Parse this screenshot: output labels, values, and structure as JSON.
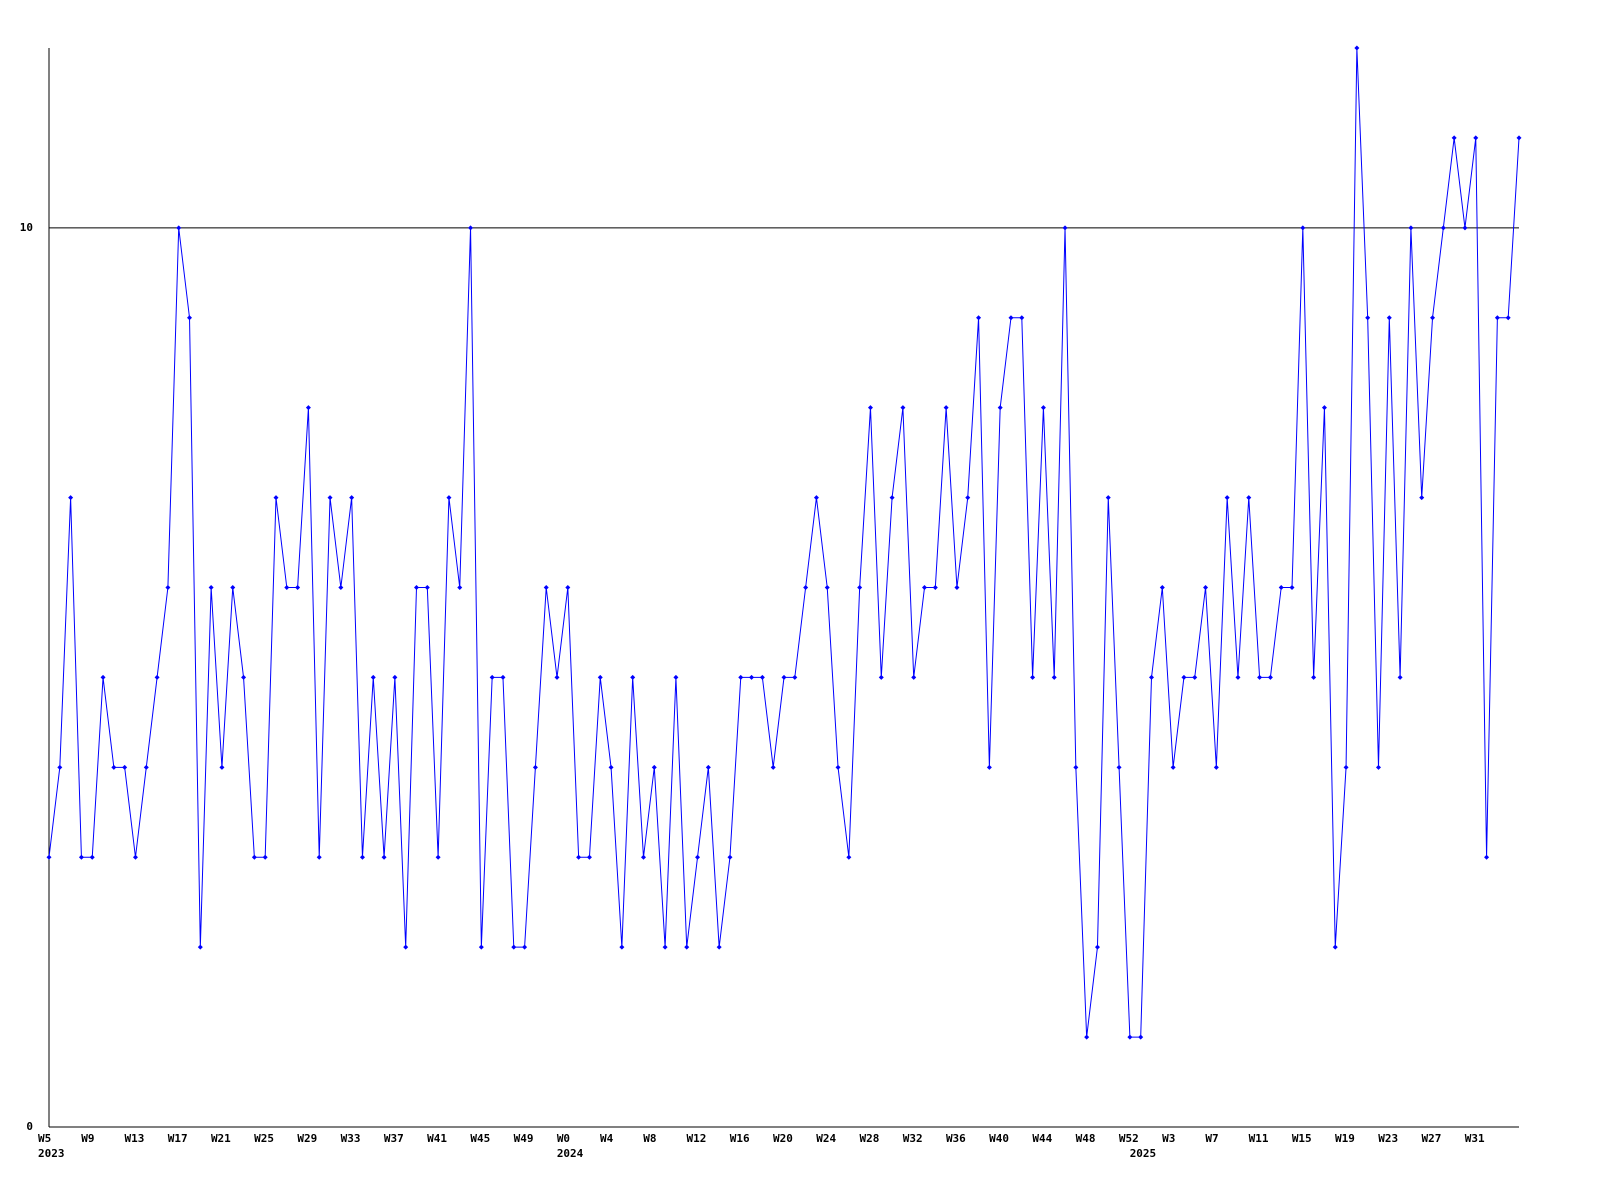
{
  "chart_data": {
    "type": "line",
    "categories": [
      "W5",
      null,
      null,
      null,
      "W9",
      null,
      null,
      null,
      "W13",
      null,
      null,
      null,
      "W17",
      null,
      null,
      null,
      "W21",
      null,
      null,
      null,
      "W25",
      null,
      null,
      null,
      "W29",
      null,
      null,
      null,
      "W33",
      null,
      null,
      null,
      "W37",
      null,
      null,
      null,
      "W41",
      null,
      null,
      null,
      "W45",
      null,
      null,
      null,
      "W49",
      null,
      null,
      null,
      "W0",
      null,
      null,
      null,
      "W4",
      null,
      null,
      null,
      "W8",
      null,
      null,
      null,
      "W12",
      null,
      null,
      null,
      "W16",
      null,
      null,
      null,
      "W20",
      null,
      null,
      null,
      "W24",
      null,
      null,
      null,
      "W28",
      null,
      null,
      null,
      "W32",
      null,
      null,
      null,
      "W36",
      null,
      null,
      null,
      "W40",
      null,
      null,
      null,
      "W44",
      null,
      null,
      null,
      "W48",
      null,
      null,
      null,
      "W52",
      null,
      null,
      null,
      "W3",
      null,
      null,
      null,
      "W7",
      null,
      null,
      null,
      "W11",
      null,
      null,
      null,
      "W15",
      null,
      null,
      null,
      "W19",
      null,
      null,
      null,
      "W23",
      null,
      null,
      null,
      "W27",
      null,
      null,
      null,
      "W31",
      null,
      null,
      null,
      null
    ],
    "years": [
      "2023",
      null,
      null,
      null,
      null,
      null,
      null,
      null,
      null,
      null,
      null,
      null,
      null,
      null,
      null,
      null,
      null,
      null,
      null,
      null,
      null,
      null,
      null,
      null,
      null,
      null,
      null,
      null,
      null,
      null,
      null,
      null,
      null,
      null,
      null,
      null,
      null,
      null,
      null,
      null,
      null,
      null,
      null,
      null,
      null,
      null,
      null,
      null,
      "2024",
      null,
      null,
      null,
      null,
      null,
      null,
      null,
      null,
      null,
      null,
      null,
      null,
      null,
      null,
      null,
      null,
      null,
      null,
      null,
      null,
      null,
      null,
      null,
      null,
      null,
      null,
      null,
      null,
      null,
      null,
      null,
      null,
      null,
      null,
      null,
      null,
      null,
      null,
      null,
      null,
      null,
      null,
      null,
      null,
      null,
      null,
      null,
      null,
      null,
      null,
      null,
      null,
      "2025",
      null,
      null,
      null,
      null,
      null,
      null,
      null,
      null,
      null,
      null,
      null,
      null,
      null,
      null,
      null,
      null,
      null,
      null,
      null,
      null,
      null,
      null,
      null,
      null,
      null,
      null,
      null,
      null,
      null,
      null,
      null,
      null,
      null,
      null,
      null
    ],
    "series": [
      {
        "color": "#0000ff",
        "values": [
          3,
          4,
          7,
          3,
          3,
          5,
          4,
          4,
          3,
          4,
          5,
          6,
          10,
          9,
          2,
          6,
          4,
          6,
          5,
          3,
          3,
          7,
          6,
          6,
          8,
          3,
          7,
          6,
          7,
          3,
          5,
          3,
          5,
          2,
          6,
          6,
          3,
          7,
          6,
          10,
          2,
          5,
          5,
          2,
          2,
          4,
          6,
          5,
          6,
          3,
          3,
          5,
          4,
          2,
          5,
          3,
          4,
          2,
          5,
          2,
          3,
          4,
          2,
          3,
          5,
          5,
          5,
          4,
          5,
          5,
          6,
          7,
          6,
          4,
          3,
          6,
          8,
          5,
          7,
          8,
          5,
          6,
          6,
          8,
          6,
          7,
          9,
          4,
          8,
          9,
          9,
          5,
          8,
          5,
          10,
          4,
          1,
          2,
          7,
          4,
          1,
          1,
          5,
          6,
          4,
          5,
          5,
          6,
          4,
          7,
          5,
          7,
          5,
          5,
          6,
          6,
          10,
          5,
          8,
          2,
          4,
          12,
          9,
          4,
          9,
          5,
          10,
          7,
          9,
          10,
          11,
          10,
          11,
          3,
          9,
          9,
          11
        ]
      }
    ],
    "ylim": [
      0,
      12
    ],
    "yticks": [
      0,
      10
    ],
    "grid": true
  }
}
